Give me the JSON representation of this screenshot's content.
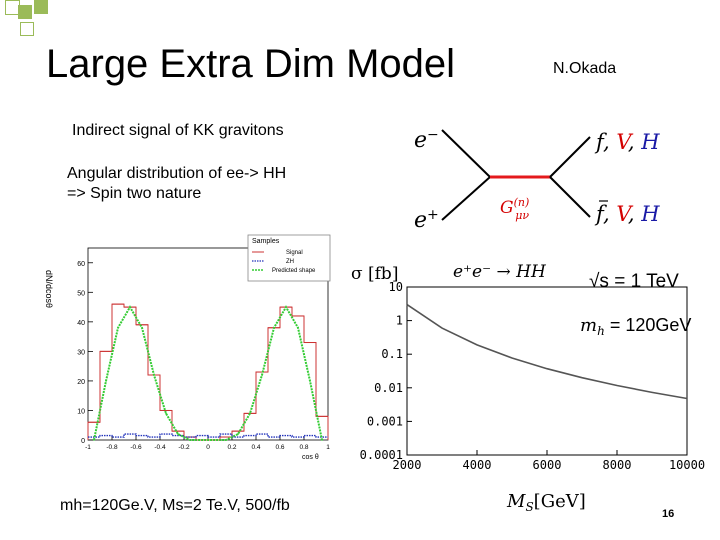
{
  "slide": {
    "title": "Large Extra Dim Model",
    "author": "N.Okada",
    "subtitle1": "Indirect signal of KK gravitons",
    "subtitle2_line1": "Angular distribution of ee-> HH",
    "subtitle2_line2": "=> Spin two nature",
    "params": "mh=120Ge.V, Ms=2 Te.V, 500/fb",
    "page_number": "16"
  },
  "colors": {
    "deco_square": "#9bbb59",
    "graviton_line": "#e41a1c",
    "particle_red": "#d40000",
    "particle_blue": "#1a1aa6",
    "hist_signal": "#cc3333",
    "hist_zh": "#2233bb",
    "hist_predicted": "#33cc33",
    "curve": "#555555"
  },
  "feynman": {
    "e_minus": "e",
    "e_minus_sup": "−",
    "e_plus": "e",
    "e_plus_sup": "+",
    "out_top_f": "f",
    "out_top_V": "V",
    "out_top_H": "H",
    "out_bottom_f": "f",
    "out_bottom_V": "V",
    "out_bottom_H": "H",
    "propagator": "G",
    "propagator_sup": "(n)",
    "propagator_sub": "μν"
  },
  "hist_plot": {
    "ylabel": "dN/dcosθ",
    "xlabel": "cos θ",
    "legend_title": "Samples",
    "legend": [
      "Signal",
      "ZH",
      "Predicted shape"
    ],
    "yticks": [
      "0",
      "10",
      "20",
      "30",
      "40",
      "50",
      "60"
    ],
    "xticks": [
      "-1",
      "-0.8",
      "-0.6",
      "-0.4",
      "-0.2",
      "0",
      "0.2",
      "0.4",
      "0.6",
      "0.8",
      "1"
    ]
  },
  "xsec_plot": {
    "ylabel": "σ [fb]",
    "process": "e⁺e⁻ → HH",
    "sqrt_s": "√s = 1 TeV",
    "mass_label": "m",
    "mass_sub": "h",
    "mass_value": " = 120GeV",
    "xlabel_main": "M",
    "xlabel_sub": "S",
    "xlabel_unit": "[GeV]",
    "yticks": [
      "10",
      "1",
      "0.1",
      "0.01",
      "0.001",
      "0.0001"
    ],
    "xticks": [
      "2000",
      "4000",
      "6000",
      "8000",
      "10000"
    ]
  },
  "chart_data": [
    {
      "type": "line",
      "title": "",
      "xlabel": "cos θ",
      "ylabel": "dN/dcosθ",
      "xlim": [
        -1,
        1
      ],
      "ylim": [
        0,
        65
      ],
      "legend_placement": "top-right",
      "x": [
        -0.95,
        -0.85,
        -0.75,
        -0.65,
        -0.55,
        -0.45,
        -0.35,
        -0.25,
        -0.15,
        -0.05,
        0.05,
        0.15,
        0.25,
        0.35,
        0.45,
        0.55,
        0.65,
        0.75,
        0.85,
        0.95
      ],
      "series": [
        {
          "name": "Signal",
          "values": [
            6,
            30,
            46,
            45,
            39,
            22,
            10,
            3,
            1,
            0,
            0,
            1,
            3,
            9,
            23,
            38,
            45,
            42,
            33,
            8
          ]
        },
        {
          "name": "ZH",
          "values": [
            1,
            1.5,
            1,
            2,
            1.5,
            1,
            2,
            1.5,
            1,
            1.5,
            1,
            2,
            1,
            1.5,
            2,
            1,
            1.5,
            1,
            1.5,
            1
          ]
        },
        {
          "name": "Predicted shape",
          "values": [
            0,
            20,
            38,
            45,
            38,
            22,
            9,
            2,
            0,
            0,
            0,
            0,
            2,
            9,
            22,
            38,
            45,
            38,
            20,
            0
          ]
        }
      ]
    },
    {
      "type": "line",
      "title": "",
      "xlabel": "M_S [GeV]",
      "ylabel": "σ [fb]",
      "xlim": [
        2000,
        10000
      ],
      "y_scale": "log",
      "ylim": [
        0.0001,
        10
      ],
      "series": [
        {
          "values": [
            {
              "x": 2000,
              "y": 3.0
            },
            {
              "x": 3000,
              "y": 0.6
            },
            {
              "x": 4000,
              "y": 0.19
            },
            {
              "x": 5000,
              "y": 0.077
            },
            {
              "x": 6000,
              "y": 0.037
            },
            {
              "x": 7000,
              "y": 0.02
            },
            {
              "x": 8000,
              "y": 0.0117
            },
            {
              "x": 9000,
              "y": 0.0073
            },
            {
              "x": 10000,
              "y": 0.0048
            }
          ]
        }
      ]
    }
  ]
}
